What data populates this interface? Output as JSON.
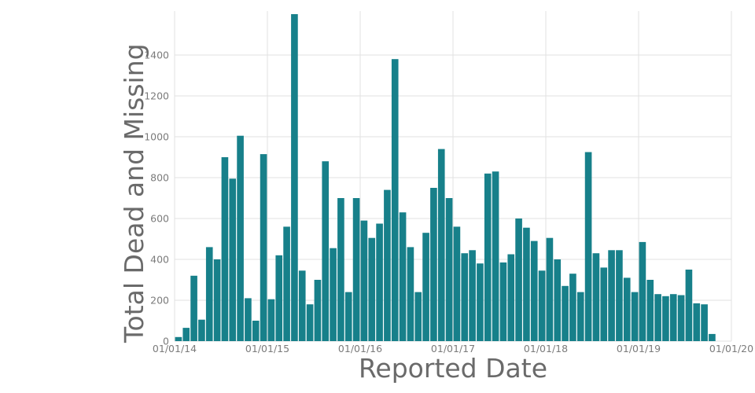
{
  "chart_data": {
    "type": "bar",
    "title": "",
    "xlabel": "Reported Date",
    "ylabel": "Total Dead and Missing",
    "x_unit": "month",
    "x_start": "2014-01",
    "x_end": "2019-12",
    "x_tick_labels": [
      "01/01/14",
      "01/01/15",
      "01/01/16",
      "01/01/17",
      "01/01/18",
      "01/01/19",
      "01/01/20"
    ],
    "y_ticks": [
      0,
      200,
      400,
      600,
      800,
      1000,
      1200,
      1400
    ],
    "ylim": [
      0,
      1612
    ],
    "grid": true,
    "legend": false,
    "values": [
      20,
      65,
      320,
      105,
      460,
      400,
      900,
      795,
      1005,
      210,
      100,
      915,
      205,
      420,
      560,
      1600,
      345,
      180,
      300,
      880,
      455,
      700,
      240,
      700,
      590,
      505,
      575,
      740,
      1380,
      630,
      460,
      240,
      530,
      750,
      940,
      700,
      560,
      430,
      445,
      380,
      820,
      830,
      385,
      425,
      600,
      555,
      490,
      345,
      505,
      400,
      270,
      330,
      240,
      925,
      430,
      360,
      445,
      445,
      310,
      240,
      485,
      300,
      230,
      220,
      230,
      225,
      350,
      185,
      180,
      35,
      0,
      0
    ]
  },
  "colors": {
    "bar": "#17808a",
    "grid": "#e2e2e2",
    "tick_text": "#7b7b7b",
    "axis_title_text": "#6a6a6a",
    "background": "#ffffff"
  }
}
